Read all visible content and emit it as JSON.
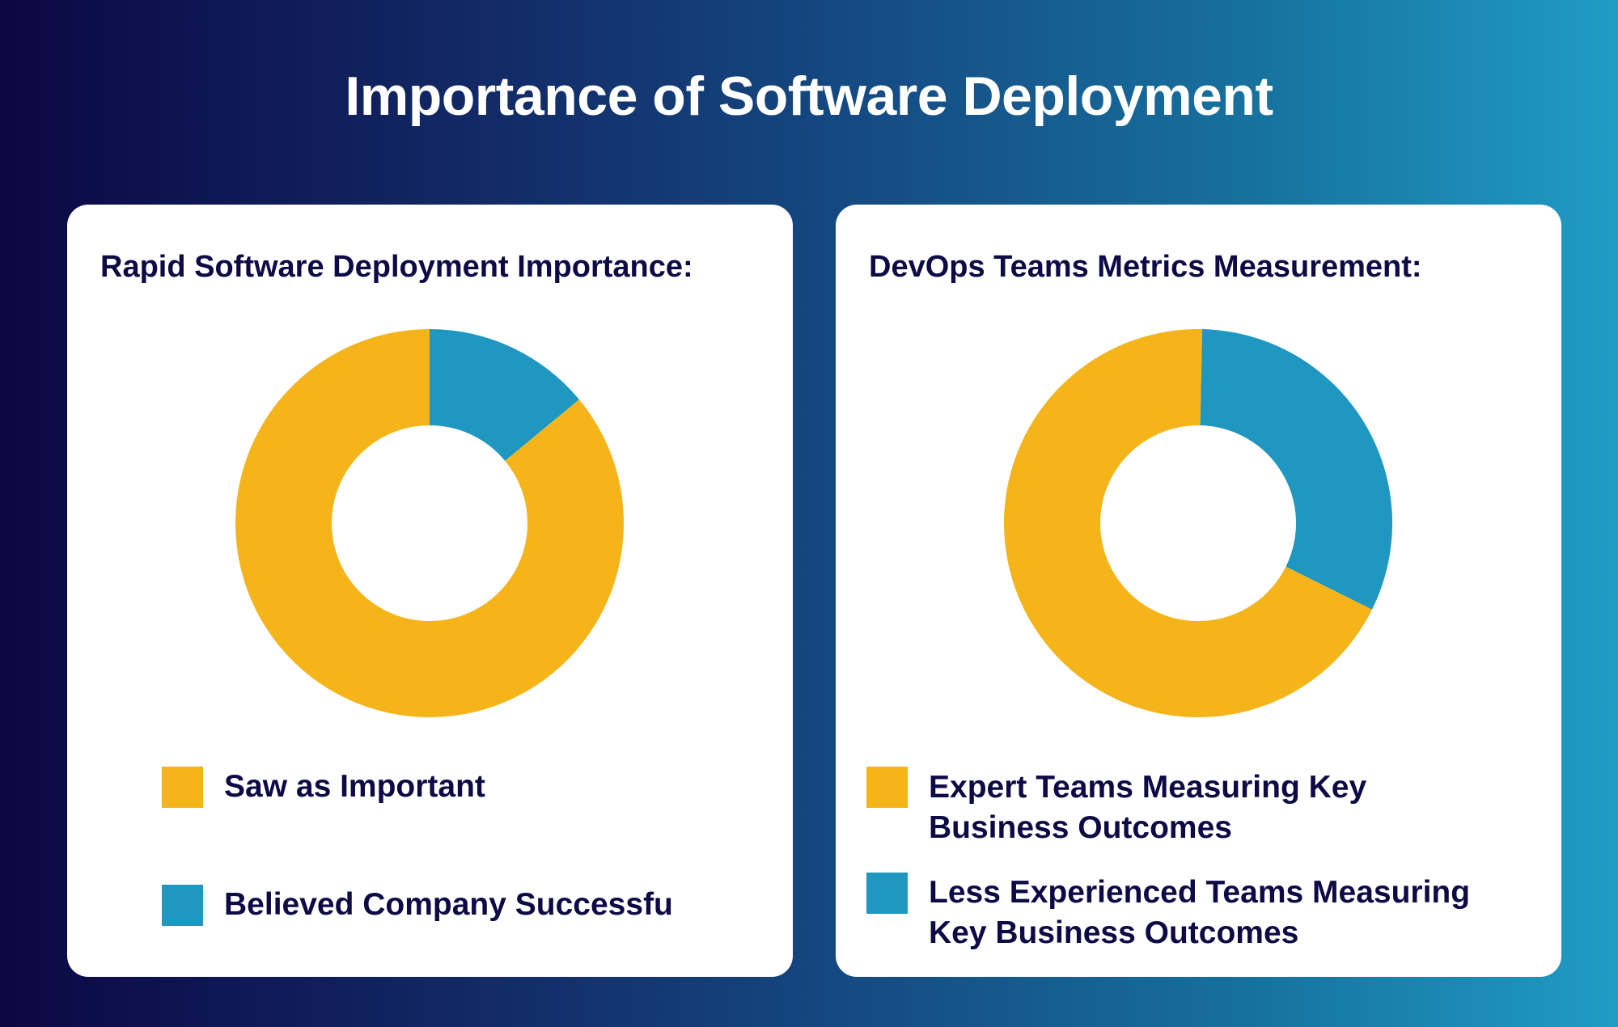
{
  "title": "Importance of Software Deployment",
  "colors": {
    "yellow": "#f4b41a",
    "blue": "#1f97c0",
    "text": "#0d0a45"
  },
  "chart_data": [
    {
      "type": "pie",
      "donut": true,
      "title": "Rapid Software Deployment Importance:",
      "series": [
        {
          "name": "Saw as Important",
          "value": 86,
          "color": "#f4b41a"
        },
        {
          "name": "Believed Company Successfu",
          "value": 14,
          "color": "#1f97c0"
        }
      ],
      "legend": "bottom"
    },
    {
      "type": "pie",
      "donut": true,
      "title": "DevOps Teams Metrics Measurement:",
      "series": [
        {
          "name": "Expert Teams Measuring Key Business Outcomes",
          "value": 68,
          "color": "#f4b41a"
        },
        {
          "name": "Less Experienced Teams Measuring Key Business Outcomes",
          "value": 32,
          "color": "#1f97c0"
        }
      ],
      "legend": "bottom"
    }
  ]
}
